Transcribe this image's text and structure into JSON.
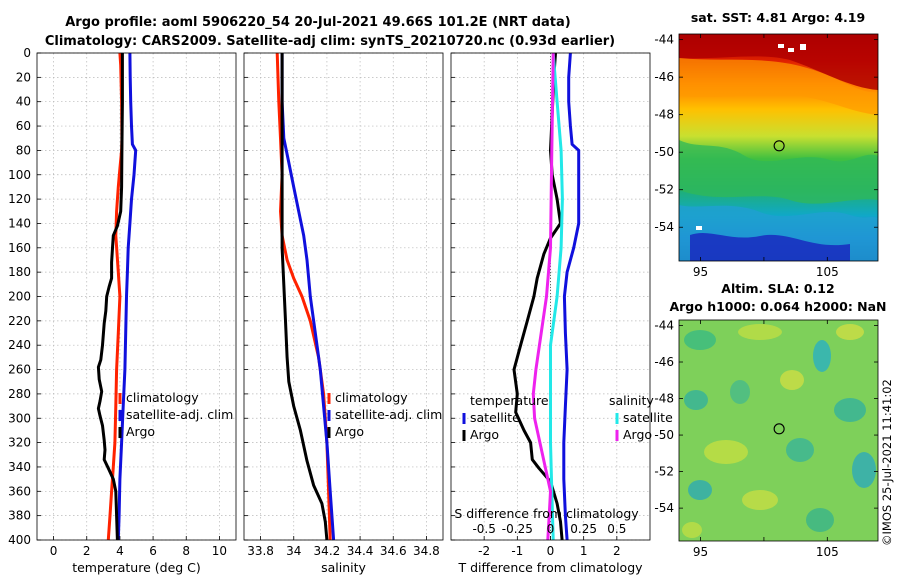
{
  "figure": {
    "title_line1": "Argo profile: aoml 5906220_54 20-Jul-2021 49.66S 101.2E (NRT data)",
    "title_line2": "Climatology: CARS2009. Satellite-adj clim: synTS_20210720.nc (0.93d earlier)",
    "stamp": "©IMOS 25-Jul-2021 11:41:02"
  },
  "colors": {
    "climatology": "#ff2200",
    "satellite": "#1010dd",
    "argo": "#000000",
    "sat_salinity": "#22e8e8",
    "argo_salinity": "#ee22ee",
    "grid": "#b8b8b8"
  },
  "chart_data": [
    {
      "type": "line",
      "panel": "temperature",
      "xlabel": "temperature (deg C)",
      "ylabel": "",
      "xlim": [
        -1,
        11
      ],
      "ylim": [
        0,
        400
      ],
      "y_inverted": true,
      "xticks": [
        0,
        2,
        4,
        6,
        8,
        10
      ],
      "yticks": [
        0,
        20,
        40,
        60,
        80,
        100,
        120,
        140,
        160,
        180,
        200,
        220,
        240,
        260,
        280,
        300,
        320,
        340,
        360,
        380,
        400
      ],
      "grid": true,
      "legend_position": "middle-right",
      "legend": [
        "climatology",
        "satellite-adj. clim",
        "Argo"
      ],
      "series": [
        {
          "name": "climatology",
          "color_key": "climatology",
          "points": [
            [
              4.0,
              0
            ],
            [
              4.05,
              10
            ],
            [
              4.1,
              40
            ],
            [
              4.12,
              70
            ],
            [
              4.1,
              80
            ],
            [
              4.0,
              95
            ],
            [
              3.9,
              110
            ],
            [
              3.8,
              130
            ],
            [
              3.75,
              150
            ],
            [
              3.9,
              180
            ],
            [
              4.0,
              200
            ],
            [
              3.9,
              230
            ],
            [
              3.8,
              260
            ],
            [
              3.75,
              290
            ],
            [
              3.7,
              320
            ],
            [
              3.6,
              340
            ],
            [
              3.5,
              360
            ],
            [
              3.4,
              380
            ],
            [
              3.3,
              400
            ]
          ]
        },
        {
          "name": "satellite-adj. clim",
          "color_key": "satellite",
          "points": [
            [
              4.6,
              0
            ],
            [
              4.62,
              20
            ],
            [
              4.65,
              40
            ],
            [
              4.7,
              60
            ],
            [
              4.75,
              75
            ],
            [
              4.95,
              80
            ],
            [
              4.85,
              100
            ],
            [
              4.7,
              120
            ],
            [
              4.6,
              140
            ],
            [
              4.5,
              160
            ],
            [
              4.45,
              180
            ],
            [
              4.4,
              200
            ],
            [
              4.35,
              230
            ],
            [
              4.3,
              260
            ],
            [
              4.2,
              290
            ],
            [
              4.1,
              320
            ],
            [
              4.0,
              350
            ],
            [
              3.95,
              380
            ],
            [
              3.9,
              400
            ]
          ]
        },
        {
          "name": "Argo",
          "color_key": "argo",
          "points": [
            [
              4.15,
              0
            ],
            [
              4.15,
              40
            ],
            [
              4.12,
              80
            ],
            [
              4.1,
              110
            ],
            [
              4.05,
              130
            ],
            [
              3.85,
              142
            ],
            [
              3.6,
              150
            ],
            [
              3.55,
              160
            ],
            [
              3.5,
              172
            ],
            [
              3.5,
              185
            ],
            [
              3.35,
              192
            ],
            [
              3.2,
              200
            ],
            [
              3.15,
              212
            ],
            [
              3.05,
              222
            ],
            [
              2.95,
              240
            ],
            [
              2.85,
              252
            ],
            [
              2.7,
              258
            ],
            [
              2.75,
              268
            ],
            [
              2.9,
              278
            ],
            [
              2.8,
              286
            ],
            [
              2.7,
              292
            ],
            [
              2.8,
              298
            ],
            [
              2.95,
              306
            ],
            [
              3.05,
              318
            ],
            [
              3.1,
              326
            ],
            [
              3.05,
              334
            ],
            [
              3.3,
              341
            ],
            [
              3.6,
              350
            ],
            [
              3.75,
              360
            ],
            [
              3.8,
              380
            ],
            [
              3.85,
              400
            ]
          ]
        }
      ]
    },
    {
      "type": "line",
      "panel": "salinity",
      "xlabel": "salinity",
      "ylabel": "",
      "xlim": [
        33.7,
        34.9
      ],
      "ylim": [
        0,
        400
      ],
      "y_inverted": true,
      "xticks": [
        33.8,
        34.0,
        34.2,
        34.4,
        34.6,
        34.8
      ],
      "xtick_labels": [
        "33.8",
        "34",
        "34.2",
        "34.4",
        "34.6",
        "34.8"
      ],
      "grid": true,
      "legend_position": "middle-right",
      "legend": [
        "climatology",
        "satellite-adj. clim",
        "Argo"
      ],
      "series": [
        {
          "name": "climatology",
          "color_key": "climatology",
          "points": [
            [
              33.9,
              0
            ],
            [
              33.905,
              20
            ],
            [
              33.91,
              40
            ],
            [
              33.92,
              70
            ],
            [
              33.93,
              100
            ],
            [
              33.92,
              130
            ],
            [
              33.93,
              150
            ],
            [
              33.96,
              170
            ],
            [
              34.0,
              185
            ],
            [
              34.05,
              200
            ],
            [
              34.1,
              220
            ],
            [
              34.15,
              250
            ],
            [
              34.18,
              280
            ],
            [
              34.2,
              320
            ],
            [
              34.21,
              360
            ],
            [
              34.22,
              400
            ]
          ]
        },
        {
          "name": "satellite-adj. clim",
          "color_key": "satellite",
          "points": [
            [
              33.93,
              0
            ],
            [
              33.93,
              40
            ],
            [
              33.94,
              70
            ],
            [
              33.97,
              90
            ],
            [
              34.0,
              110
            ],
            [
              34.03,
              130
            ],
            [
              34.06,
              150
            ],
            [
              34.08,
              170
            ],
            [
              34.1,
              200
            ],
            [
              34.13,
              230
            ],
            [
              34.16,
              260
            ],
            [
              34.18,
              290
            ],
            [
              34.2,
              320
            ],
            [
              34.22,
              360
            ],
            [
              34.24,
              400
            ]
          ]
        },
        {
          "name": "Argo",
          "color_key": "argo",
          "points": [
            [
              33.93,
              0
            ],
            [
              33.93,
              40
            ],
            [
              33.93,
              80
            ],
            [
              33.93,
              120
            ],
            [
              33.93,
              160
            ],
            [
              33.94,
              190
            ],
            [
              33.95,
              220
            ],
            [
              33.96,
              250
            ],
            [
              33.97,
              270
            ],
            [
              34.0,
              290
            ],
            [
              34.04,
              310
            ],
            [
              34.08,
              335
            ],
            [
              34.12,
              355
            ],
            [
              34.17,
              370
            ],
            [
              34.19,
              385
            ],
            [
              34.2,
              400
            ]
          ]
        }
      ]
    },
    {
      "type": "line",
      "panel": "difference",
      "xlabel": "T difference from climatology",
      "ylabel": "",
      "xlim": [
        -3,
        3
      ],
      "ylim": [
        0,
        400
      ],
      "y_inverted": true,
      "xticks": [
        -2,
        -1,
        0,
        1,
        2
      ],
      "top_axis_label": "S difference from climatology",
      "top_ticks": [
        -0.5,
        -0.25,
        0,
        0.25,
        0.5
      ],
      "top_tick_labels": [
        "-0.5",
        "-0.25",
        "0",
        "0.25",
        "0.5"
      ],
      "grid": true,
      "zero_line": "dotted",
      "legend_position": "middle",
      "legend_groups": [
        {
          "title": "temperature",
          "items": [
            "satellite",
            "Argo"
          ]
        },
        {
          "title": "salinity",
          "items": [
            "satellite",
            "Argo"
          ]
        }
      ],
      "series": [
        {
          "name": "temperature satellite",
          "group": "temperature",
          "legend_label": "satellite",
          "color_key": "satellite",
          "points": [
            [
              0.6,
              0
            ],
            [
              0.55,
              20
            ],
            [
              0.55,
              40
            ],
            [
              0.6,
              60
            ],
            [
              0.65,
              75
            ],
            [
              0.85,
              80
            ],
            [
              0.85,
              100
            ],
            [
              0.85,
              120
            ],
            [
              0.85,
              140
            ],
            [
              0.7,
              160
            ],
            [
              0.5,
              180
            ],
            [
              0.42,
              200
            ],
            [
              0.45,
              230
            ],
            [
              0.5,
              260
            ],
            [
              0.45,
              290
            ],
            [
              0.4,
              320
            ],
            [
              0.4,
              350
            ],
            [
              0.45,
              380
            ],
            [
              0.5,
              400
            ]
          ]
        },
        {
          "name": "temperature Argo",
          "group": "temperature",
          "legend_label": "Argo",
          "color_key": "argo",
          "points": [
            [
              0.15,
              0
            ],
            [
              0.1,
              20
            ],
            [
              0.05,
              50
            ],
            [
              0.0,
              80
            ],
            [
              0.05,
              100
            ],
            [
              0.2,
              120
            ],
            [
              0.3,
              140
            ],
            [
              0.0,
              152
            ],
            [
              -0.2,
              165
            ],
            [
              -0.4,
              185
            ],
            [
              -0.5,
              200
            ],
            [
              -0.7,
              220
            ],
            [
              -0.9,
              240
            ],
            [
              -1.1,
              260
            ],
            [
              -1.0,
              280
            ],
            [
              -1.05,
              295
            ],
            [
              -0.8,
              310
            ],
            [
              -0.6,
              320
            ],
            [
              -0.55,
              334
            ],
            [
              -0.35,
              341
            ],
            [
              0.0,
              352
            ],
            [
              0.2,
              370
            ],
            [
              0.3,
              385
            ],
            [
              0.35,
              400
            ]
          ]
        },
        {
          "name": "salinity satellite",
          "group": "salinity",
          "legend_label": "satellite",
          "color_key": "sat_salinity",
          "points": [
            [
              0.02,
              0
            ],
            [
              0.05,
              40
            ],
            [
              0.08,
              80
            ],
            [
              0.09,
              120
            ],
            [
              0.08,
              160
            ],
            [
              0.05,
              200
            ],
            [
              0.0,
              240
            ],
            [
              0.0,
              280
            ],
            [
              0.0,
              320
            ],
            [
              0.01,
              360
            ],
            [
              0.02,
              400
            ]
          ]
        },
        {
          "name": "salinity Argo",
          "group": "salinity",
          "legend_label": "Argo",
          "color_key": "argo_salinity",
          "points": [
            [
              0.02,
              0
            ],
            [
              0.01,
              80
            ],
            [
              0.0,
              160
            ],
            [
              -0.03,
              200
            ],
            [
              -0.07,
              230
            ],
            [
              -0.11,
              260
            ],
            [
              -0.13,
              280
            ],
            [
              -0.12,
              300
            ],
            [
              -0.08,
              320
            ],
            [
              -0.04,
              340
            ],
            [
              0.0,
              360
            ],
            [
              -0.01,
              380
            ],
            [
              -0.02,
              400
            ]
          ]
        }
      ]
    },
    {
      "type": "heatmap",
      "panel": "sst-map",
      "title": "sat. SST: 4.81 Argo: 4.19",
      "xticks": [
        95,
        100,
        105
      ],
      "xtick_labels": [
        "95",
        "",
        "105"
      ],
      "yticks": [
        -44,
        -46,
        -48,
        -50,
        -52,
        -54
      ],
      "xlim": [
        93.3,
        109
      ],
      "ylim": [
        -55.8,
        -43.7
      ],
      "marker": {
        "lon": 101.2,
        "lat": -49.66
      }
    },
    {
      "type": "heatmap",
      "panel": "sla-map",
      "title_line1": "Altim. SLA: 0.12",
      "title_line2": "Argo h1000: 0.064 h2000: NaN",
      "xticks": [
        95,
        100,
        105
      ],
      "xtick_labels": [
        "95",
        "",
        "105"
      ],
      "yticks": [
        -44,
        -46,
        -48,
        -50,
        -52,
        -54
      ],
      "xlim": [
        93.3,
        109
      ],
      "ylim": [
        -55.8,
        -43.7
      ],
      "marker": {
        "lon": 101.2,
        "lat": -49.66
      }
    }
  ]
}
